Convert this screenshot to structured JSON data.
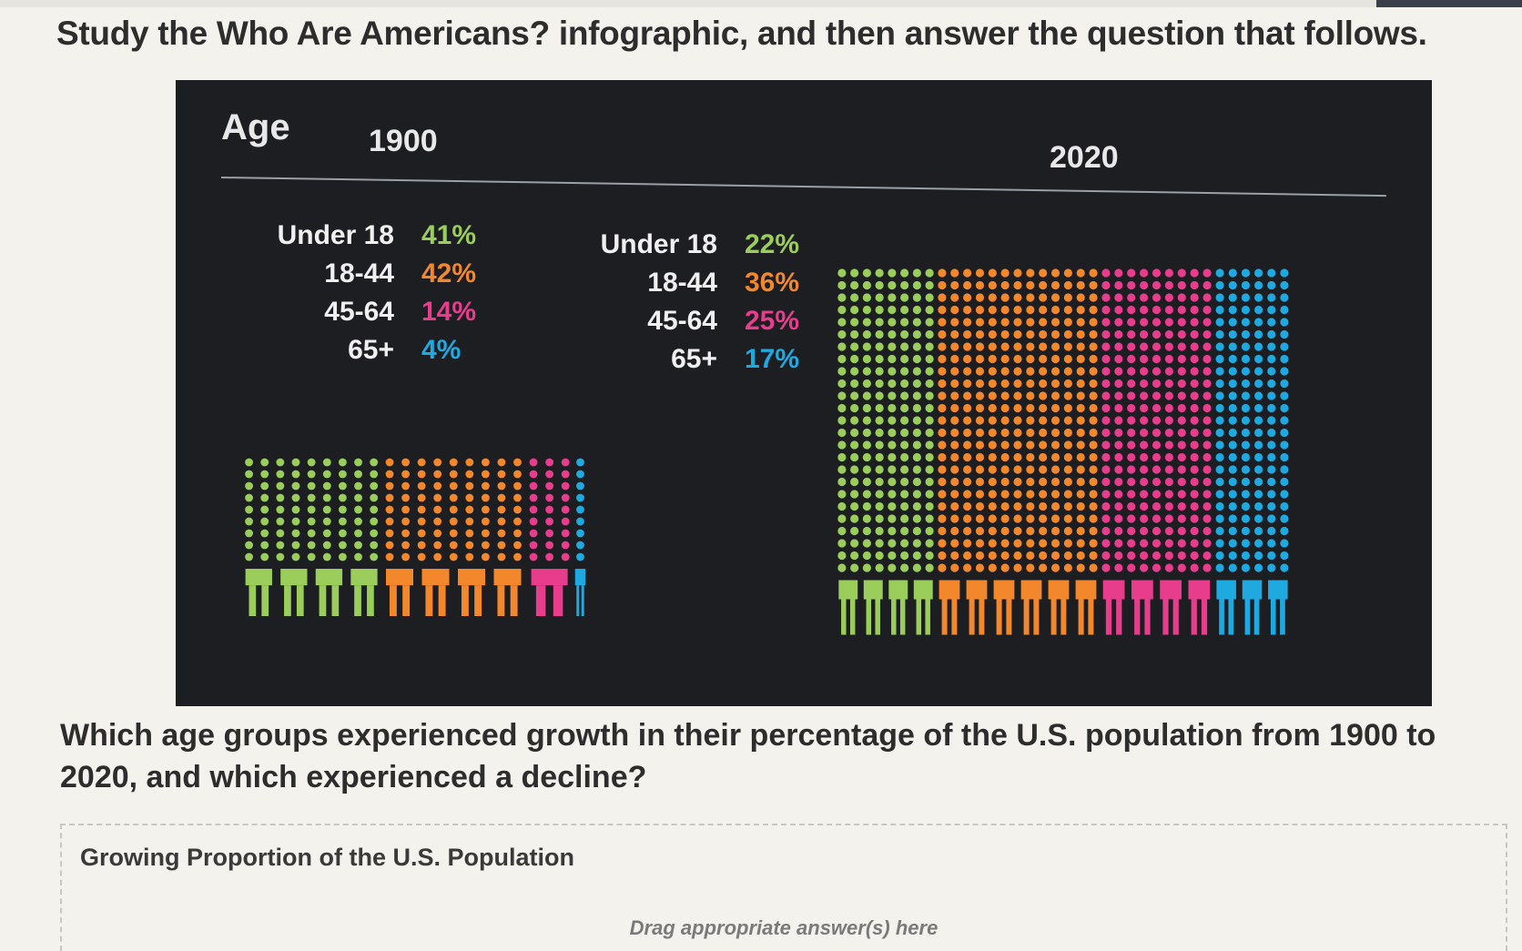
{
  "instruction": "Study the Who Are Americans? infographic, and then answer the question that follows.",
  "infographic": {
    "title": "Age",
    "year_1900": "1900",
    "year_2020": "2020",
    "colors": {
      "under18": "#9acd5a",
      "age18_44": "#f2872c",
      "age45_64": "#e83c8c",
      "age65plus": "#1fa9e1"
    },
    "legend_1900": [
      {
        "label": "Under 18",
        "pct": "41%",
        "value": 41
      },
      {
        "label": "18-44",
        "pct": "42%",
        "value": 42
      },
      {
        "label": "45-64",
        "pct": "14%",
        "value": 14
      },
      {
        "label": "65+",
        "pct": "4%",
        "value": 4
      }
    ],
    "legend_2020": [
      {
        "label": "Under 18",
        "pct": "22%",
        "value": 22
      },
      {
        "label": "18-44",
        "pct": "36%",
        "value": 36
      },
      {
        "label": "45-64",
        "pct": "25%",
        "value": 25
      },
      {
        "label": "65+",
        "pct": "17%",
        "value": 17
      }
    ],
    "figure_icon": "person-icon"
  },
  "question": "Which age groups experienced growth in their percentage of the U.S. population from 1900 to 2020, and which experienced a decline?",
  "drop_zone": {
    "title": "Growing Proportion of the U.S. Population",
    "hint": "Drag appropriate answer(s) here"
  }
}
